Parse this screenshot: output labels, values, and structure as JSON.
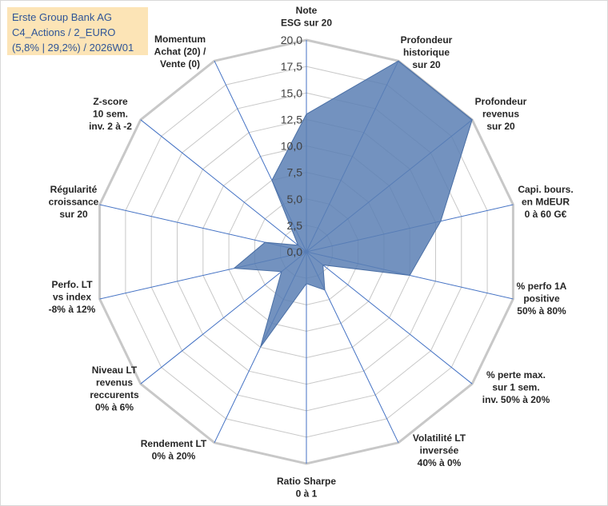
{
  "chart_data": {
    "type": "radar",
    "title": [
      "Erste Group Bank AG",
      "C4_Actions / 2_EURO",
      "(5,8% | 29,2%) / 2026W01"
    ],
    "rlim": [
      0,
      20
    ],
    "ticks": [
      "0,0",
      "2,5",
      "5,0",
      "7,5",
      "10,0",
      "12,5",
      "15,0",
      "17,5",
      "20,0"
    ],
    "tick_values": [
      0,
      2.5,
      5,
      7.5,
      10,
      12.5,
      15,
      17.5,
      20
    ],
    "categories": [
      [
        "Note",
        "ESG sur 20"
      ],
      [
        "Profondeur",
        "historique",
        "sur 20"
      ],
      [
        "Profondeur",
        "revenus",
        "sur 20"
      ],
      [
        "Capi. bours.",
        "en MdEUR",
        "0 à 60 G€"
      ],
      [
        "% perfo 1A",
        "positive",
        "50% à 80%"
      ],
      [
        "% perte max.",
        "sur 1 sem.",
        "inv. 50% à 20%"
      ],
      [
        "Volatilité LT",
        "inversée",
        "40% à 0%"
      ],
      [
        "Ratio Sharpe",
        "0 à 1"
      ],
      [
        "Rendement LT",
        "0% à 20%"
      ],
      [
        "Niveau LT",
        "revenus",
        "reccurents",
        "0% à 6%"
      ],
      [
        "Perfo. LT",
        "vs index",
        "-8% à 12%"
      ],
      [
        "Régularité",
        "croissance",
        "sur 20"
      ],
      [
        "Z-score",
        "10 sem.",
        "inv. 2 à -2"
      ],
      [
        "Momentum",
        "Achat (20) /",
        "Vente (0)"
      ]
    ],
    "series": [
      {
        "name": "Erste Group Bank AG",
        "color": "#5b7fb4",
        "values": [
          13,
          20,
          20,
          13,
          10,
          2,
          4,
          3,
          10,
          3,
          7,
          4,
          1,
          7.5
        ]
      }
    ],
    "grid_color": "#c8c8c8",
    "spoke_color": "#4472c4"
  }
}
